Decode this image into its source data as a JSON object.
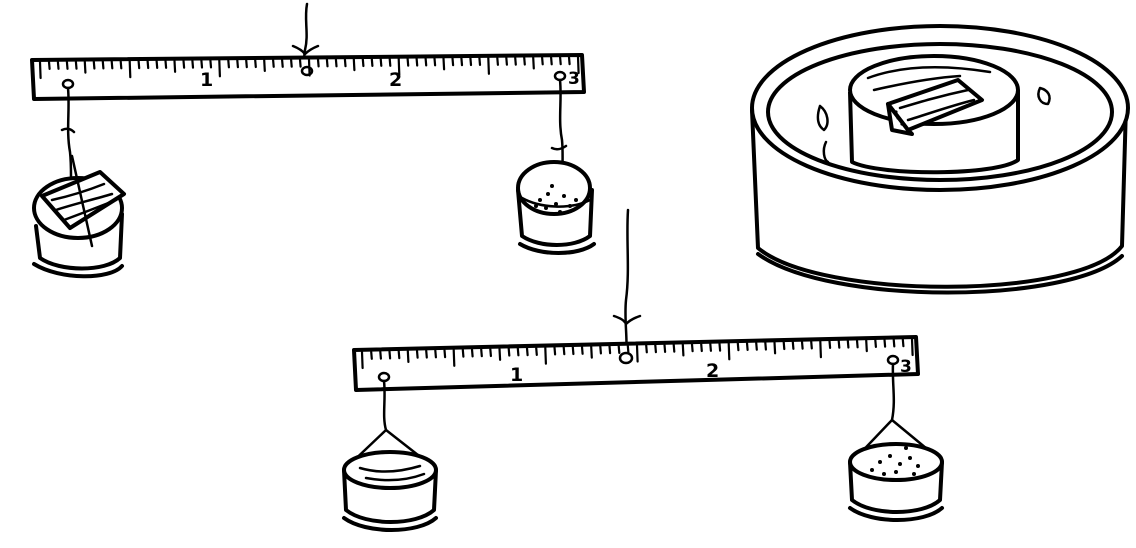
{
  "figure": {
    "top_ruler": {
      "labels": [
        "1",
        "2",
        "3"
      ]
    },
    "bottom_ruler": {
      "labels": [
        "1",
        "2",
        "3"
      ]
    }
  }
}
